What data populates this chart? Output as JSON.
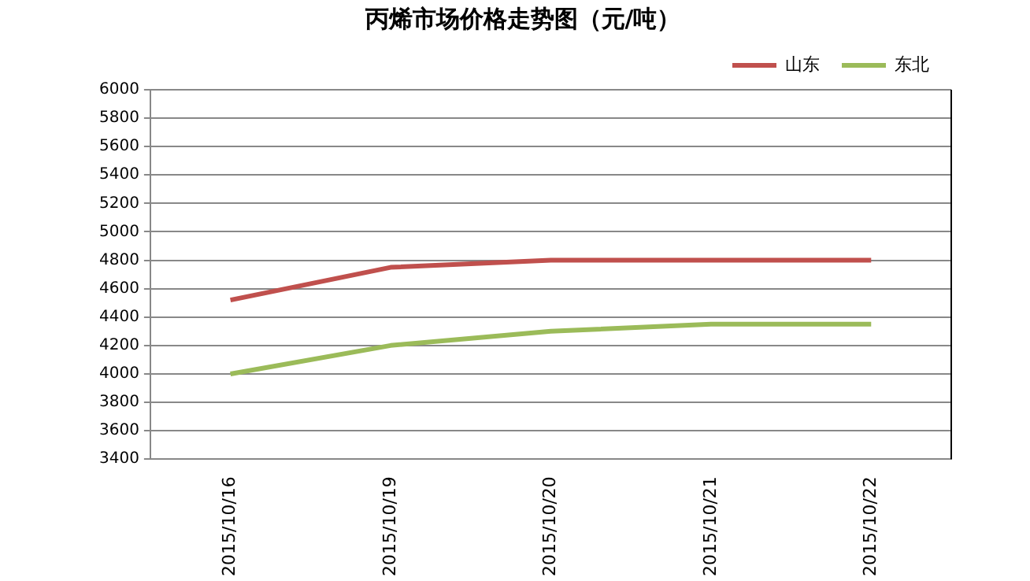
{
  "chart_data": {
    "type": "line",
    "title": "丙烯市场价格走势图（元/吨）",
    "categories": [
      "2015/10/16",
      "2015/10/19",
      "2015/10/20",
      "2015/10/21",
      "2015/10/22"
    ],
    "series": [
      {
        "name": "山东",
        "color": "#c0504d",
        "values": [
          4520,
          4750,
          4800,
          4800,
          4800
        ]
      },
      {
        "name": "东北",
        "color": "#9bbb59",
        "values": [
          4000,
          4200,
          4300,
          4350,
          4350
        ]
      }
    ],
    "ylim": [
      3400,
      6000
    ],
    "yticks": [
      3400,
      3600,
      3800,
      4000,
      4200,
      4400,
      4600,
      4800,
      5000,
      5200,
      5400,
      5600,
      5800,
      6000
    ],
    "grid": "y",
    "legend": "top right",
    "marker": "none"
  }
}
